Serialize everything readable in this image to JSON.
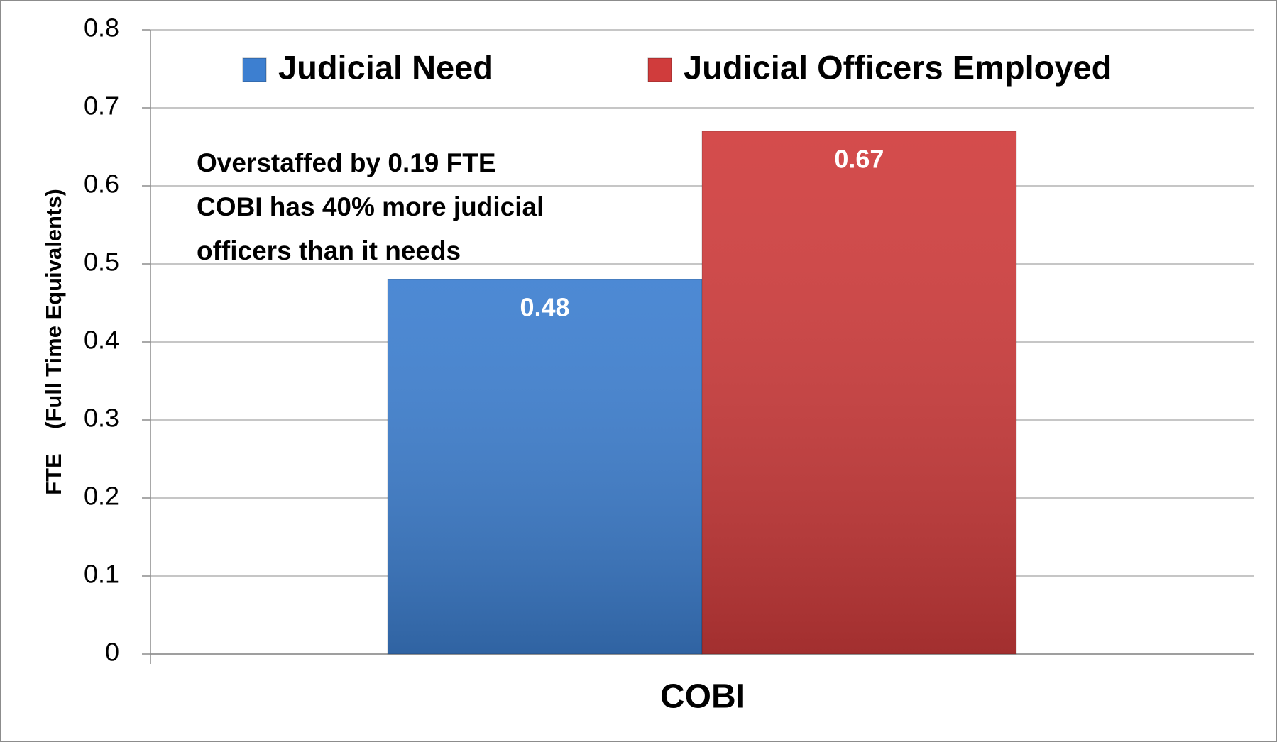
{
  "chart_data": {
    "type": "bar",
    "categories": [
      "COBI"
    ],
    "series": [
      {
        "name": "Judicial Need",
        "color": "#3d7fd0",
        "values": [
          0.48
        ]
      },
      {
        "name": "Judicial Officers Employed",
        "color": "#d03c3c",
        "values": [
          0.67
        ]
      }
    ],
    "ylabel": "FTE    (Full Time Equivalents)",
    "annotation": [
      "Overstaffed by 0.19 FTE",
      "COBI has 40% more judicial",
      "officers than it needs"
    ],
    "ylim": [
      0,
      0.8
    ],
    "yticks": [
      0,
      0.1,
      0.2,
      0.3,
      0.4,
      0.5,
      0.6,
      0.7,
      0.8
    ],
    "grid": true,
    "legend": "top"
  }
}
